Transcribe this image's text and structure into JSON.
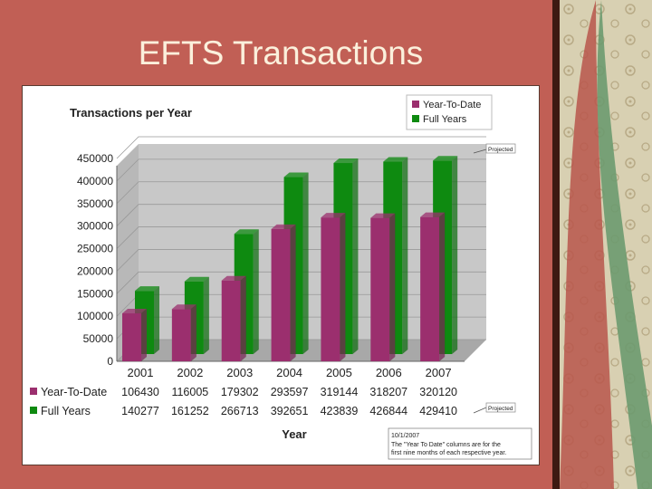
{
  "slide": {
    "title": "EFTS Transactions"
  },
  "colors": {
    "background": "#c15f55",
    "ytd": "#9b2f6e",
    "full": "#0e8a10",
    "title_text": "#fbf0dc",
    "plot_back": "#c8c8c8"
  },
  "chart_data": {
    "type": "bar",
    "title": "Transactions per Year",
    "xlabel": "Year",
    "ylabel": "",
    "categories": [
      "2001",
      "2002",
      "2003",
      "2004",
      "2005",
      "2006",
      "2007"
    ],
    "series": [
      {
        "name": "Year-To-Date",
        "values": [
          106430,
          116005,
          179302,
          293597,
          319144,
          318207,
          320120
        ]
      },
      {
        "name": "Full Years",
        "values": [
          140277,
          161252,
          266713,
          392651,
          423839,
          426844,
          429410
        ]
      }
    ],
    "ylim": [
      0,
      450000
    ],
    "yticks": [
      0,
      50000,
      100000,
      150000,
      200000,
      250000,
      300000,
      350000,
      400000,
      450000
    ],
    "legend": "top-right",
    "grid": true,
    "data_table": true,
    "annotations": {
      "projected_top": "Projected",
      "projected_table": "Projected",
      "note_date": "10/1/2007",
      "note_line1": "The \"Year To Date\" columns are for the",
      "note_line2": "first nine months of each respective year."
    }
  }
}
